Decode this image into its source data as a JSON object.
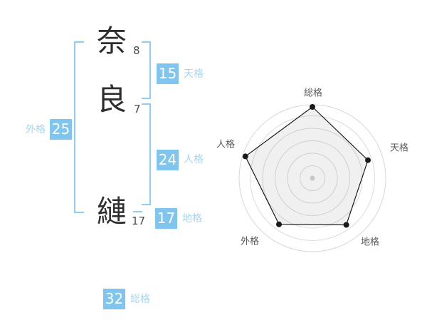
{
  "name": {
    "characters": [
      {
        "glyph": "奈",
        "strokes": "8"
      },
      {
        "glyph": "良",
        "strokes": "7"
      },
      {
        "glyph": "縺",
        "strokes": "17"
      }
    ]
  },
  "kaku": [
    {
      "id": "tenkaku",
      "label": "天格",
      "value": "15"
    },
    {
      "id": "jinkaku",
      "label": "人格",
      "value": "24"
    },
    {
      "id": "chikaku",
      "label": "地格",
      "value": "17"
    },
    {
      "id": "gaikaku",
      "label": "外格",
      "value": "25"
    },
    {
      "id": "soukaku",
      "label": "総格",
      "value": "32"
    }
  ],
  "colors": {
    "accent_blue": "#7FC5F0",
    "label_blue": "#A5D6F4",
    "bracket_blue": "#8FCDF3",
    "chart_grid": "#DCDCDC",
    "chart_outer_ring": "#D7D7D7",
    "chart_line": "#1A1A1A",
    "chart_fill": "rgba(0,0,0,0.06)",
    "chart_center_dot": "#C8C8C8"
  },
  "chart_data": {
    "type": "radar",
    "categories": [
      "総格",
      "天格",
      "地格",
      "外格",
      "人格"
    ],
    "series": [
      {
        "name": "name-fortune",
        "values": [
          100,
          82,
          81,
          80,
          99
        ]
      }
    ],
    "kakusu_by_category": {
      "総格": 32,
      "天格": 15,
      "地格": 17,
      "外格": 25,
      "人格": 24
    },
    "value_max": 100,
    "axis_angles_deg": [
      -90,
      -18,
      54,
      126,
      198
    ],
    "rings": [
      17.5,
      35,
      52.5,
      70,
      87.5
    ],
    "outer_ring": 103,
    "center": {
      "x": 439,
      "y": 250
    },
    "grid": "circular concentric rings",
    "legend": "none",
    "title": ""
  }
}
